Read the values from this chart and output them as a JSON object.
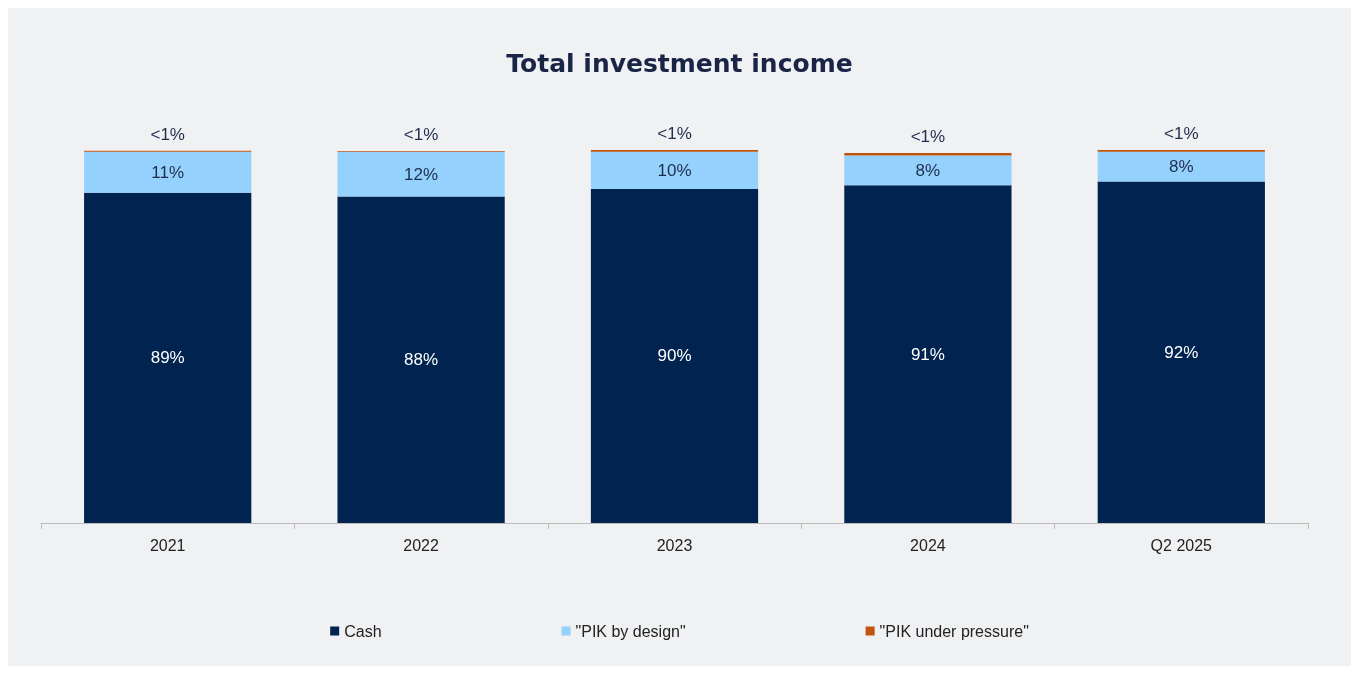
{
  "chart_data": {
    "type": "bar",
    "title": "Total investment income",
    "categories": [
      "2021",
      "2022",
      "2023",
      "2024",
      "Q2 2025"
    ],
    "stacked": true,
    "legend": "bottom",
    "series": [
      {
        "name": "Cash",
        "color": "#00234f",
        "values": [
          89,
          88,
          90,
          91,
          92
        ],
        "value_labels": [
          "89%",
          "88%",
          "90%",
          "91%",
          "92%"
        ]
      },
      {
        "name": "\"PIK by design\"",
        "color": "#94d1fd",
        "values": [
          11,
          12,
          10,
          8,
          8
        ],
        "value_labels": [
          "11%",
          "12%",
          "10%",
          "8%",
          "8%"
        ]
      },
      {
        "name": "\"PIK under pressure\"",
        "color": "#c0540f",
        "values": [
          0.3,
          0.2,
          0.5,
          0.7,
          0.5
        ],
        "value_labels": [
          "<1%",
          "<1%",
          "<1%",
          "<1%",
          "<1%"
        ]
      }
    ]
  }
}
